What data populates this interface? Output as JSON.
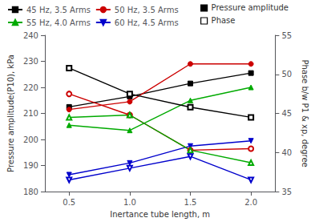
{
  "chart_data": {
    "type": "line",
    "xlabel": "Inertance tube length, m",
    "ylabel": "Pressure amplitude(P10), kPa",
    "y2label": "Phase b/w P1 & xp, degree",
    "x": [
      0.5,
      1.0,
      1.5,
      2.0
    ],
    "xlim": [
      0.3,
      2.2
    ],
    "xticks": [
      0.5,
      {
        "value": 1.0,
        "label": "1.0"
      },
      1.5,
      {
        "value": 2.0,
        "label": "2.0"
      }
    ],
    "ylim": [
      180,
      240
    ],
    "yticks": [
      180,
      190,
      200,
      210,
      220,
      230,
      240
    ],
    "y2lim": [
      35,
      55
    ],
    "y2ticks": [
      35,
      40,
      45,
      50,
      55
    ],
    "grid": false,
    "legend": "upper left",
    "series": [
      {
        "name": "45 Hz, 3.5 Arms",
        "axis": "y",
        "color": "#000000",
        "marker": "square",
        "values": [
          212.5,
          216.5,
          221.5,
          225.5
        ]
      },
      {
        "name": "50 Hz, 3.5 Arms",
        "axis": "y",
        "color": "#cc0000",
        "marker": "circle",
        "values": [
          211.5,
          214.5,
          229.0,
          229.0
        ]
      },
      {
        "name": "55 Hz, 4.0 Arms",
        "axis": "y",
        "color": "#00aa00",
        "marker": "triangle_up",
        "values": [
          205.5,
          203.5,
          215.0,
          220.0
        ]
      },
      {
        "name": "60 Hz, 4.5 Arms",
        "axis": "y",
        "color": "#0000cc",
        "marker": "triangle_down",
        "values": [
          186.5,
          191.0,
          197.5,
          199.5
        ]
      },
      {
        "name": "45 Hz, 3.5 Arms",
        "axis": "y2",
        "color": "#000000",
        "marker": "open_square",
        "values": [
          50.8,
          47.5,
          45.8,
          44.5
        ]
      },
      {
        "name": "50 Hz, 3.5 Arms",
        "axis": "y2",
        "color": "#cc0000",
        "marker": "open_circle",
        "values": [
          47.5,
          44.8,
          40.3,
          40.5
        ]
      },
      {
        "name": "55 Hz, 4.0 Arms",
        "axis": "y2",
        "color": "#00aa00",
        "marker": "open_triangle_up",
        "values": [
          44.5,
          44.8,
          40.3,
          38.7
        ]
      },
      {
        "name": "60 Hz, 4.5 Arms",
        "axis": "y2",
        "color": "#0000cc",
        "marker": "open_triangle_down",
        "values": [
          36.5,
          38.0,
          39.5,
          36.5
        ]
      }
    ],
    "annotations": [
      {
        "text": "Pressure amplitude",
        "marker": "square",
        "color": "#000000"
      },
      {
        "text": "Phase",
        "marker": "open_square",
        "color": "#000000"
      }
    ]
  }
}
